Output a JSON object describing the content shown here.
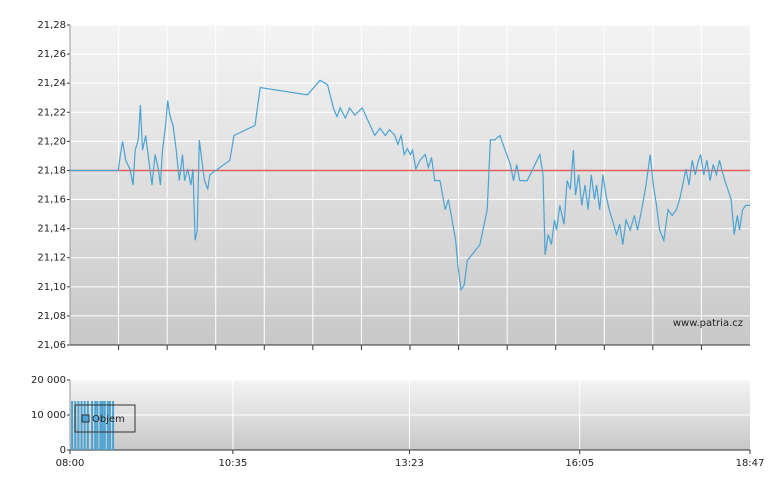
{
  "chart_data": [
    {
      "type": "line",
      "annotation": "www.patria.cz",
      "xlim": [
        480,
        1127
      ],
      "ylim": [
        21.06,
        21.28
      ],
      "yticks": [
        {
          "value": 21.06,
          "label": "21,06"
        },
        {
          "value": 21.08,
          "label": "21,08"
        },
        {
          "value": 21.1,
          "label": "21,10"
        },
        {
          "value": 21.12,
          "label": "21,12"
        },
        {
          "value": 21.14,
          "label": "21,14"
        },
        {
          "value": 21.16,
          "label": "21,16"
        },
        {
          "value": 21.18,
          "label": "21,18"
        },
        {
          "value": 21.2,
          "label": "21,20"
        },
        {
          "value": 21.22,
          "label": "21,22"
        },
        {
          "value": 21.24,
          "label": "21,24"
        },
        {
          "value": 21.26,
          "label": "21,26"
        },
        {
          "value": 21.28,
          "label": "21,28"
        }
      ],
      "grid": true,
      "reference_line": 21.18,
      "reference_color": "#e06060",
      "series": [
        {
          "color": "#4ba3d3",
          "x": [
            480,
            526,
            528,
            530,
            533,
            537,
            540,
            542,
            545,
            547,
            549,
            552,
            555,
            558,
            561,
            564,
            566,
            568,
            571,
            573,
            575,
            578,
            581,
            584,
            587,
            589,
            592,
            595,
            597,
            599,
            601,
            603,
            606,
            608,
            611,
            613,
            632,
            636,
            656,
            661,
            706,
            718,
            725,
            731,
            734,
            737,
            742,
            746,
            751,
            758,
            770,
            775,
            780,
            784,
            789,
            792,
            795,
            798,
            801,
            804,
            806,
            809,
            813,
            818,
            821,
            824,
            827,
            832,
            837,
            840,
            847,
            849,
            852,
            855,
            858,
            870,
            877,
            880,
            884,
            889,
            894,
            899,
            902,
            905,
            908,
            915,
            927,
            930,
            932,
            935,
            938,
            941,
            943,
            946,
            950,
            953,
            956,
            959,
            961,
            964,
            967,
            970,
            973,
            976,
            979,
            981,
            984,
            987,
            990,
            993,
            996,
            1000,
            1003,
            1006,
            1009,
            1013,
            1017,
            1020,
            1024,
            1028,
            1032,
            1035,
            1038,
            1041,
            1045,
            1049,
            1053,
            1057,
            1060,
            1063,
            1066,
            1069,
            1072,
            1075,
            1078,
            1080,
            1083,
            1086,
            1089,
            1092,
            1095,
            1098,
            1100,
            1103,
            1106,
            1109,
            1112,
            1115,
            1117,
            1120,
            1123,
            1127
          ],
          "values": [
            21.18,
            21.18,
            21.191,
            21.2,
            21.187,
            21.181,
            21.17,
            21.194,
            21.201,
            21.225,
            21.194,
            21.204,
            21.187,
            21.17,
            21.191,
            21.181,
            21.17,
            21.194,
            21.211,
            21.228,
            21.218,
            21.211,
            21.194,
            21.173,
            21.191,
            21.173,
            21.181,
            21.17,
            21.181,
            21.132,
            21.139,
            21.201,
            21.184,
            21.173,
            21.167,
            21.177,
            21.187,
            21.204,
            21.211,
            21.237,
            21.232,
            21.242,
            21.239,
            21.222,
            21.217,
            21.223,
            21.216,
            21.223,
            21.218,
            21.223,
            21.204,
            21.209,
            21.204,
            21.208,
            21.204,
            21.198,
            21.204,
            21.191,
            21.195,
            21.191,
            21.194,
            21.181,
            21.187,
            21.191,
            21.182,
            21.189,
            21.173,
            21.173,
            21.153,
            21.16,
            21.132,
            21.115,
            21.098,
            21.101,
            21.118,
            21.129,
            21.153,
            21.201,
            21.201,
            21.204,
            21.194,
            21.184,
            21.173,
            21.184,
            21.173,
            21.173,
            21.191,
            21.177,
            21.122,
            21.136,
            21.129,
            21.146,
            21.139,
            21.156,
            21.143,
            21.173,
            21.167,
            21.194,
            21.163,
            21.177,
            21.156,
            21.17,
            21.153,
            21.177,
            21.16,
            21.17,
            21.153,
            21.177,
            21.163,
            21.153,
            21.146,
            21.136,
            21.143,
            21.129,
            21.146,
            21.139,
            21.149,
            21.139,
            21.153,
            21.17,
            21.191,
            21.17,
            21.156,
            21.139,
            21.132,
            21.153,
            21.149,
            21.153,
            21.16,
            21.17,
            21.181,
            21.17,
            21.187,
            21.177,
            21.187,
            21.191,
            21.177,
            21.187,
            21.173,
            21.184,
            21.177,
            21.187,
            21.181,
            21.173,
            21.167,
            21.16,
            21.136,
            21.149,
            21.139,
            21.153,
            21.156,
            21.156
          ]
        }
      ]
    },
    {
      "type": "bar",
      "xlim": [
        480,
        1127
      ],
      "xticks": [
        {
          "value": 480,
          "label": "08:00"
        },
        {
          "value": 635,
          "label": "10:35"
        },
        {
          "value": 803,
          "label": "13:23"
        },
        {
          "value": 965,
          "label": "16:05"
        },
        {
          "value": 1127,
          "label": "18:47"
        }
      ],
      "ylim": [
        0,
        20000
      ],
      "yticks": [
        0,
        {
          "value": 10000,
          "label": "10 000"
        },
        {
          "value": 20000,
          "label": "20 000"
        }
      ],
      "grid": true,
      "legend": "top-left",
      "series": [
        {
          "name": "Objem",
          "color": "#4ba3d3",
          "x": [
            482,
            485,
            488,
            491,
            494,
            497,
            501,
            504,
            506,
            509,
            511,
            513,
            516,
            518,
            521
          ],
          "values": [
            14000,
            14000,
            14000,
            14000,
            14000,
            14000,
            14000,
            14000,
            14000,
            14000,
            14000,
            14000,
            14000,
            14000,
            14000
          ]
        }
      ]
    }
  ]
}
